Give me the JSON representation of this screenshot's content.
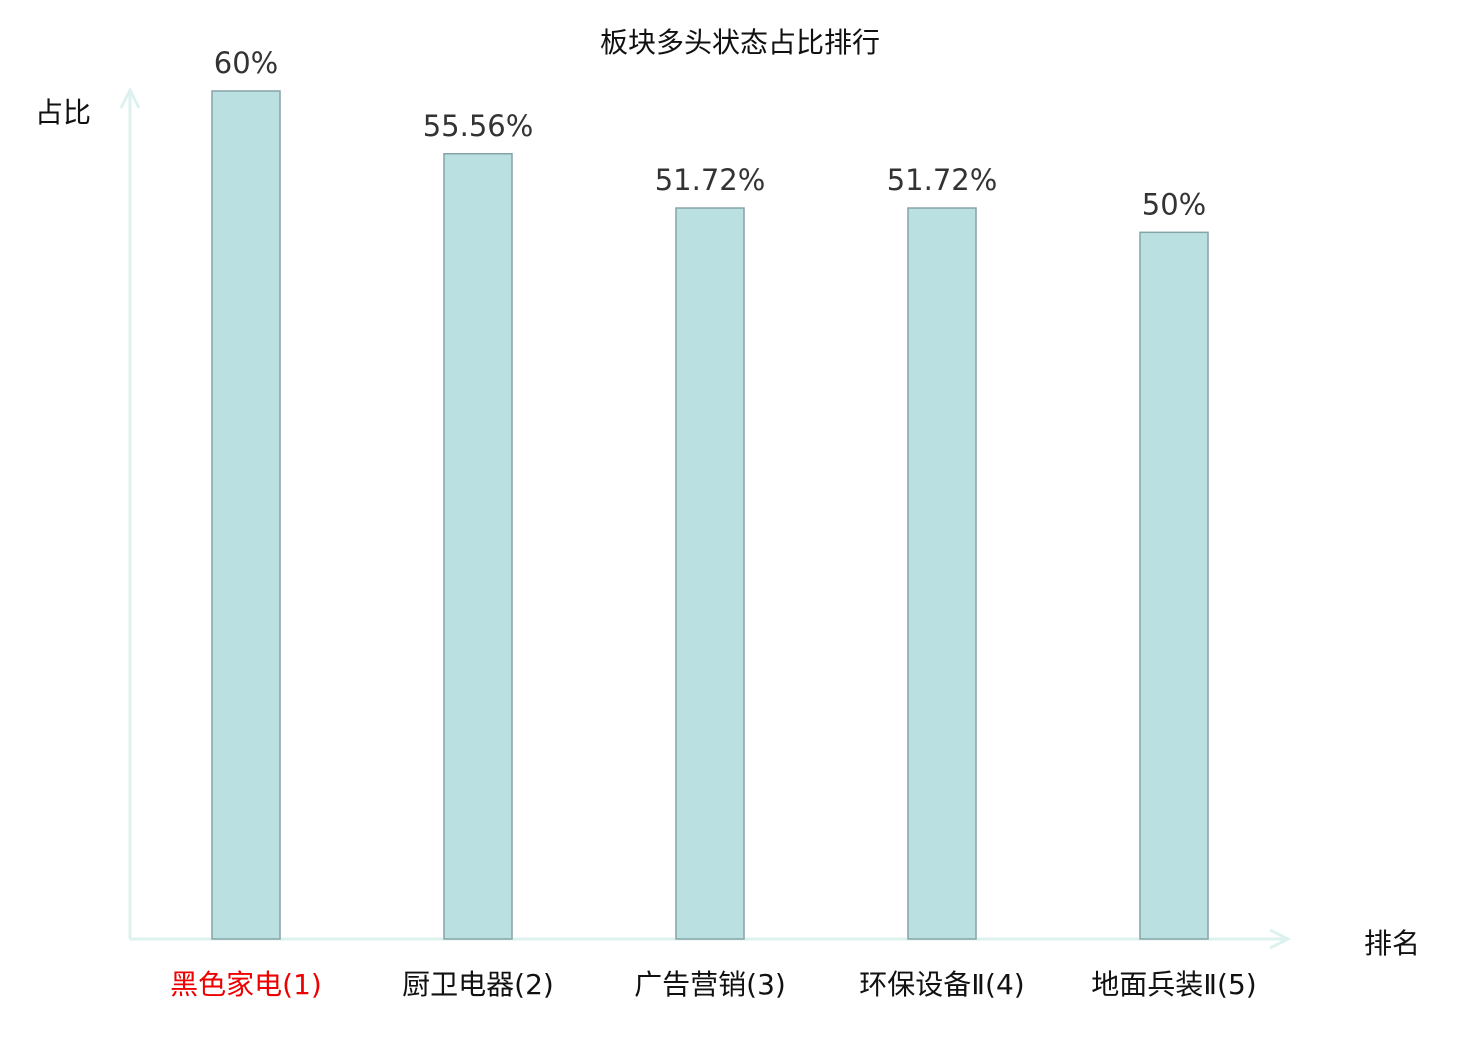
{
  "chart_data": {
    "type": "bar",
    "title": "板块多头状态占比排行",
    "xlabel": "排名",
    "ylabel": "占比",
    "categories": [
      "黑色家电(1)",
      "厨卫电器(2)",
      "广告营销(3)",
      "环保设备Ⅱ(4)",
      "地面兵装Ⅱ(5)"
    ],
    "values": [
      60,
      55.56,
      51.72,
      51.72,
      50
    ],
    "data_labels": [
      "60%",
      "55.56%",
      "51.72%",
      "51.72%",
      "50%"
    ],
    "ylim": [
      0,
      60
    ],
    "grid": false,
    "highlight_index": 0,
    "colors": {
      "bar_fill": "#bae0e2",
      "bar_stroke": "#86a4a6",
      "axis": "#ddf2ef",
      "highlight_label": "#ee0000",
      "label": "#111111",
      "data_label": "#333333"
    }
  }
}
